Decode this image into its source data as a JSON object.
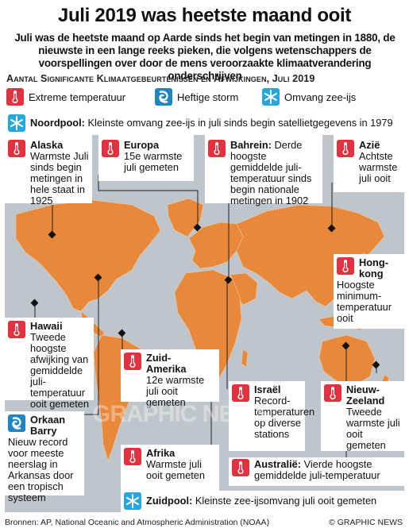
{
  "title": "Juli 2019 was heetste maand ooit",
  "subtitle": "Juli was de heetste maand op Aarde sinds het begin van metingen in 1880, de nieuwste in een lange reeks pieken, die volgens wetenschappers de voorspellingen over door de mens veroorzaakte klimaatverandering onderschrijven",
  "section_heading": "Aantal Significante Klimaatgebeurtenissen en Afwijkingen, Juli 2019",
  "legend": {
    "extreme": "Extreme temperatuur",
    "storm": "Heftige storm",
    "ice": "Omvang zee-ijs"
  },
  "icons": {
    "temperature": "thermometer-icon",
    "storm": "hurricane-icon",
    "ice": "snowflake-icon"
  },
  "colors": {
    "temperature": "#e2313f",
    "storm": "#1f86c2",
    "ice": "#27a6dc",
    "land": "#e8883a",
    "ocean": "#bfc6cb"
  },
  "noordpool": {
    "name": "Noordpool:",
    "text": "Kleinste omvang zee-ijs in juli sinds begin satellietgegevens in 1979"
  },
  "alaska": {
    "name": "Alaska",
    "text": "Warmste Juli sinds begin metingen in hele staat in 1925"
  },
  "europa": {
    "name": "Europa",
    "text": "15e warmste juli gemeten"
  },
  "bahrein": {
    "name": "Bahrein:",
    "text": "Derde hoogste gemiddelde juli-temperatuur sinds begin nationale metingen in 1902"
  },
  "azie": {
    "name": "Azië",
    "text": "Achtste warmste juli ooit"
  },
  "hongkong": {
    "name": "Hong-kong",
    "text": "Hoogste minimum-temperatuur ooit"
  },
  "hawaii": {
    "name": "Hawaii",
    "text": "Tweede hoogste afwijking van gemiddelde juli-temperatuur ooit gemeten"
  },
  "zuidamerika": {
    "name": "Zuid-Amerika",
    "text": "12e warmste juli ooit gemeten"
  },
  "israel": {
    "name": "Israël",
    "text": "Record-temperaturen op diverse stations"
  },
  "nieuwzeeland": {
    "name": "Nieuw-Zeeland",
    "text": "Tweede warmste juli ooit gemeten"
  },
  "orkaan": {
    "name": "Orkaan Barry",
    "text": "Nieuw record voor meeste neerslag in Arkansas door een tropisch systeem"
  },
  "afrika": {
    "name": "Afrika",
    "text": "Warmste juli ooit gemeten"
  },
  "australie": {
    "name": "Australië:",
    "text": "Vierde hoogste gemiddelde juli-temperatuur"
  },
  "zuidpool": {
    "name": "Zuidpool:",
    "text": "Kleinste zee-ijsomvang juli ooit gemeten"
  },
  "watermark": "GRAPHIC NEWS",
  "footer": {
    "source": "Bronnen: AP, National Oceanic and Atmospheric Administration (NOAA)",
    "copyright": "© GRAPHIC NEWS"
  }
}
